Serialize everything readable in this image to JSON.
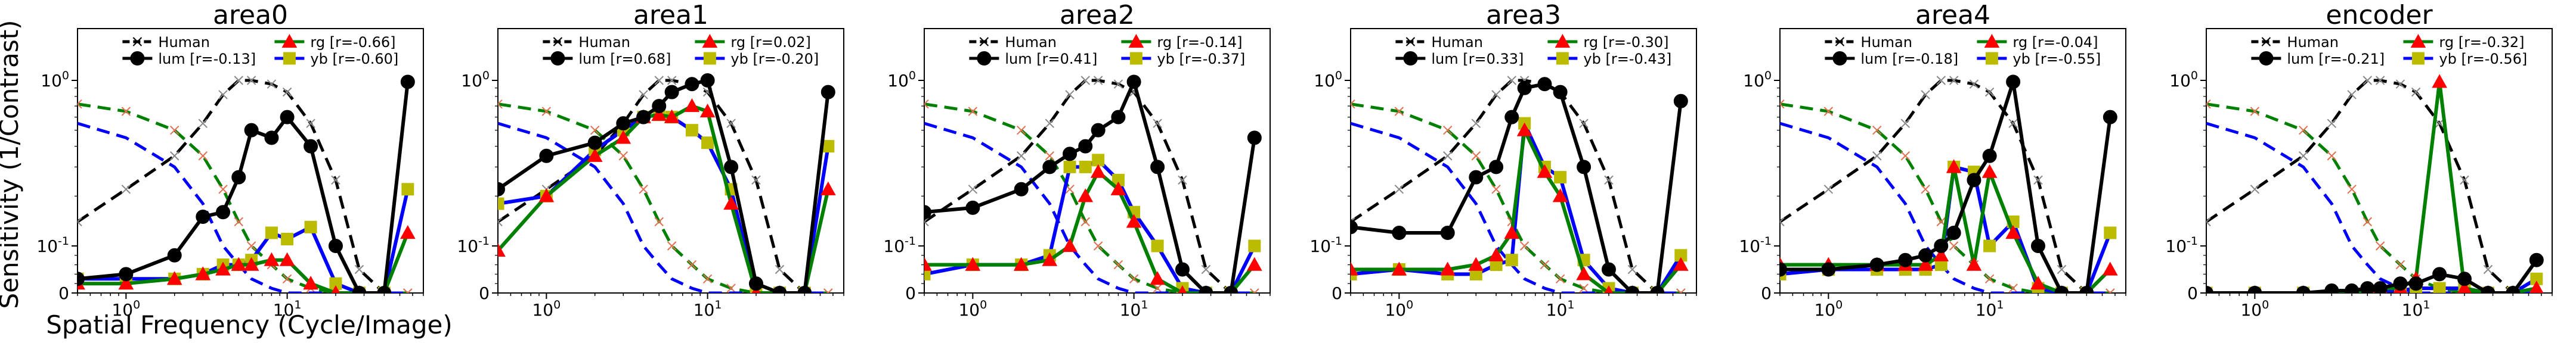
{
  "figure": {
    "ylabel": "Sensitivity (1/Contrast)",
    "xlabel": "Spatial Frequency (Cycle/Image)"
  },
  "colors": {
    "human": "#000000",
    "human_marker": "#888888",
    "lum": "#000000",
    "rg": "#008000",
    "rg_marker": "#ff0000",
    "yb": "#0000ff",
    "yb_marker": "#bbbb00",
    "human_rg_dash": "#008000",
    "human_yb_dash": "#0000ff",
    "human_cross": "#e07050"
  },
  "legend_labels": {
    "human": "Human",
    "lum": "lum",
    "rg": "rg",
    "yb": "yb"
  },
  "chart_data": [
    {
      "type": "line",
      "title": "area0",
      "xscale": "log",
      "yscale": "symlog",
      "xlim": [
        0.5,
        70
      ],
      "yticks": [
        "0",
        "10^-1",
        "10^0"
      ],
      "legend": {
        "lum_r": "[r=-0.13]",
        "rg_r": "[r=-0.66]",
        "yb_r": "[r=-0.60]"
      },
      "x": [
        0.5,
        1,
        2,
        3,
        4,
        5,
        6,
        8,
        10,
        14,
        20,
        28,
        40,
        56
      ],
      "human_lum": [
        0.14,
        0.22,
        0.35,
        0.55,
        0.82,
        1.0,
        1.0,
        0.95,
        0.85,
        0.55,
        0.25,
        0.05,
        0.0,
        0.0
      ],
      "human_rg": [
        0.72,
        0.65,
        0.5,
        0.35,
        0.22,
        0.14,
        0.1,
        0.06,
        0.03,
        0.01,
        0.0,
        0.0,
        0.0,
        0.0
      ],
      "human_yb": [
        0.55,
        0.45,
        0.3,
        0.18,
        0.1,
        0.06,
        0.03,
        0.01,
        0.0,
        0.0,
        0.0,
        0.0,
        0.0,
        0.0
      ],
      "series": [
        {
          "name": "lum",
          "values": [
            0.03,
            0.04,
            0.08,
            0.15,
            0.16,
            0.26,
            0.5,
            0.45,
            0.6,
            0.4,
            0.1,
            0.0,
            0.0,
            0.98
          ]
        },
        {
          "name": "rg",
          "values": [
            0.02,
            0.02,
            0.03,
            0.04,
            0.05,
            0.06,
            0.06,
            0.07,
            0.07,
            0.02,
            0.0,
            0.0,
            0.0,
            0.12
          ]
        },
        {
          "name": "yb",
          "values": [
            0.03,
            0.03,
            0.03,
            0.04,
            0.06,
            0.06,
            0.07,
            0.12,
            0.11,
            0.13,
            0.02,
            0.0,
            0.0,
            0.22
          ]
        }
      ]
    },
    {
      "type": "line",
      "title": "area1",
      "xscale": "log",
      "yscale": "symlog",
      "xlim": [
        0.5,
        70
      ],
      "yticks": [
        "0",
        "10^-1",
        "10^0"
      ],
      "legend": {
        "lum_r": "[r=0.68]",
        "rg_r": "[r=0.02]",
        "yb_r": "[r=-0.20]"
      },
      "x": [
        0.5,
        1,
        2,
        3,
        4,
        5,
        6,
        8,
        10,
        14,
        20,
        28,
        40,
        56
      ],
      "human_lum": [
        0.14,
        0.22,
        0.35,
        0.55,
        0.82,
        1.0,
        1.0,
        0.95,
        0.85,
        0.55,
        0.25,
        0.05,
        0.0,
        0.0
      ],
      "human_rg": [
        0.72,
        0.65,
        0.5,
        0.35,
        0.22,
        0.14,
        0.1,
        0.06,
        0.03,
        0.01,
        0.0,
        0.0,
        0.0,
        0.0
      ],
      "human_yb": [
        0.55,
        0.45,
        0.3,
        0.18,
        0.1,
        0.06,
        0.03,
        0.01,
        0.0,
        0.0,
        0.0,
        0.0,
        0.0,
        0.0
      ],
      "series": [
        {
          "name": "lum",
          "values": [
            0.22,
            0.35,
            0.42,
            0.55,
            0.6,
            0.7,
            0.85,
            0.95,
            1.0,
            0.3,
            0.02,
            0.0,
            0.0,
            0.85
          ]
        },
        {
          "name": "rg",
          "values": [
            0.09,
            0.2,
            0.35,
            0.45,
            0.6,
            0.62,
            0.6,
            0.7,
            0.65,
            0.18,
            0.0,
            0.0,
            0.0,
            0.22
          ]
        },
        {
          "name": "yb",
          "values": [
            0.18,
            0.2,
            0.38,
            0.5,
            0.6,
            0.62,
            0.6,
            0.5,
            0.42,
            0.22,
            0.0,
            0.0,
            0.0,
            0.4
          ]
        }
      ]
    },
    {
      "type": "line",
      "title": "area2",
      "xscale": "log",
      "yscale": "symlog",
      "xlim": [
        0.5,
        70
      ],
      "yticks": [
        "0",
        "10^-1",
        "10^0"
      ],
      "legend": {
        "lum_r": "[r=0.41]",
        "rg_r": "[r=-0.14]",
        "yb_r": "[r=-0.37]"
      },
      "x": [
        0.5,
        1,
        2,
        3,
        4,
        5,
        6,
        8,
        10,
        14,
        20,
        28,
        40,
        56
      ],
      "human_lum": [
        0.14,
        0.22,
        0.35,
        0.55,
        0.82,
        1.0,
        1.0,
        0.95,
        0.85,
        0.55,
        0.25,
        0.05,
        0.0,
        0.0
      ],
      "human_rg": [
        0.72,
        0.65,
        0.5,
        0.35,
        0.22,
        0.14,
        0.1,
        0.06,
        0.03,
        0.01,
        0.0,
        0.0,
        0.0,
        0.0
      ],
      "human_yb": [
        0.55,
        0.45,
        0.3,
        0.18,
        0.1,
        0.06,
        0.03,
        0.01,
        0.0,
        0.0,
        0.0,
        0.0,
        0.0,
        0.0
      ],
      "series": [
        {
          "name": "lum",
          "values": [
            0.16,
            0.17,
            0.22,
            0.3,
            0.36,
            0.4,
            0.5,
            0.6,
            0.98,
            0.3,
            0.05,
            0.0,
            0.0,
            0.45
          ]
        },
        {
          "name": "rg",
          "values": [
            0.06,
            0.06,
            0.06,
            0.07,
            0.1,
            0.2,
            0.28,
            0.22,
            0.14,
            0.03,
            0.0,
            0.0,
            0.0,
            0.06
          ]
        },
        {
          "name": "yb",
          "values": [
            0.04,
            0.06,
            0.06,
            0.08,
            0.3,
            0.3,
            0.33,
            0.25,
            0.16,
            0.1,
            0.01,
            0.0,
            0.0,
            0.1
          ]
        }
      ]
    },
    {
      "type": "line",
      "title": "area3",
      "xscale": "log",
      "yscale": "symlog",
      "xlim": [
        0.5,
        70
      ],
      "yticks": [
        "0",
        "10^-1",
        "10^0"
      ],
      "legend": {
        "lum_r": "[r=0.33]",
        "rg_r": "[r=-0.30]",
        "yb_r": "[r=-0.43]"
      },
      "x": [
        0.5,
        1,
        2,
        3,
        4,
        5,
        6,
        8,
        10,
        14,
        20,
        28,
        40,
        56
      ],
      "human_lum": [
        0.14,
        0.22,
        0.35,
        0.55,
        0.82,
        1.0,
        1.0,
        0.95,
        0.85,
        0.55,
        0.25,
        0.05,
        0.0,
        0.0
      ],
      "human_rg": [
        0.72,
        0.65,
        0.5,
        0.35,
        0.22,
        0.14,
        0.1,
        0.06,
        0.03,
        0.01,
        0.0,
        0.0,
        0.0,
        0.0
      ],
      "human_yb": [
        0.55,
        0.45,
        0.3,
        0.18,
        0.1,
        0.06,
        0.03,
        0.01,
        0.0,
        0.0,
        0.0,
        0.0,
        0.0,
        0.0
      ],
      "series": [
        {
          "name": "lum",
          "values": [
            0.13,
            0.12,
            0.12,
            0.26,
            0.3,
            0.6,
            0.9,
            0.95,
            0.85,
            0.3,
            0.05,
            0.0,
            0.0,
            0.75
          ]
        },
        {
          "name": "rg",
          "values": [
            0.05,
            0.05,
            0.05,
            0.06,
            0.08,
            0.12,
            0.5,
            0.28,
            0.2,
            0.04,
            0.0,
            0.0,
            0.0,
            0.06
          ]
        },
        {
          "name": "yb",
          "values": [
            0.04,
            0.05,
            0.04,
            0.04,
            0.06,
            0.07,
            0.55,
            0.3,
            0.26,
            0.07,
            0.01,
            0.0,
            0.0,
            0.08
          ]
        }
      ]
    },
    {
      "type": "line",
      "title": "area4",
      "xscale": "log",
      "yscale": "symlog",
      "xlim": [
        0.5,
        70
      ],
      "yticks": [
        "0",
        "10^-1",
        "10^0"
      ],
      "legend": {
        "lum_r": "[r=-0.18]",
        "rg_r": "[r=-0.04]",
        "yb_r": "[r=-0.55]"
      },
      "x": [
        0.5,
        1,
        2,
        3,
        4,
        5,
        6,
        8,
        10,
        14,
        20,
        28,
        40,
        56
      ],
      "human_lum": [
        0.14,
        0.22,
        0.35,
        0.55,
        0.82,
        1.0,
        1.0,
        0.95,
        0.85,
        0.55,
        0.25,
        0.05,
        0.0,
        0.0
      ],
      "human_rg": [
        0.72,
        0.65,
        0.5,
        0.35,
        0.22,
        0.14,
        0.1,
        0.06,
        0.03,
        0.01,
        0.0,
        0.0,
        0.0,
        0.0
      ],
      "human_yb": [
        0.55,
        0.45,
        0.3,
        0.18,
        0.1,
        0.06,
        0.03,
        0.01,
        0.0,
        0.0,
        0.0,
        0.0,
        0.0,
        0.0
      ],
      "series": [
        {
          "name": "lum",
          "values": [
            0.05,
            0.05,
            0.06,
            0.07,
            0.08,
            0.1,
            0.12,
            0.25,
            0.35,
            0.98,
            0.1,
            0.0,
            0.0,
            0.6
          ]
        },
        {
          "name": "rg",
          "values": [
            0.06,
            0.06,
            0.06,
            0.06,
            0.06,
            0.08,
            0.3,
            0.06,
            0.28,
            0.12,
            0.02,
            0.0,
            0.0,
            0.05
          ]
        },
        {
          "name": "yb",
          "values": [
            0.04,
            0.05,
            0.05,
            0.05,
            0.05,
            0.06,
            0.3,
            0.28,
            0.1,
            0.14,
            0.01,
            0.0,
            0.0,
            0.12
          ]
        }
      ]
    },
    {
      "type": "line",
      "title": "encoder",
      "xscale": "log",
      "yscale": "symlog",
      "xlim": [
        0.5,
        70
      ],
      "yticks": [
        "0",
        "10^-1",
        "10^0"
      ],
      "legend": {
        "lum_r": "[r=-0.21]",
        "rg_r": "[r=-0.32]",
        "yb_r": "[r=-0.56]"
      },
      "x": [
        0.5,
        1,
        2,
        3,
        4,
        5,
        6,
        8,
        10,
        14,
        20,
        28,
        40,
        56
      ],
      "human_lum": [
        0.14,
        0.22,
        0.35,
        0.55,
        0.82,
        1.0,
        1.0,
        0.95,
        0.85,
        0.55,
        0.25,
        0.05,
        0.0,
        0.0
      ],
      "human_rg": [
        0.72,
        0.65,
        0.5,
        0.35,
        0.22,
        0.14,
        0.1,
        0.06,
        0.03,
        0.01,
        0.0,
        0.0,
        0.0,
        0.0
      ],
      "human_yb": [
        0.55,
        0.45,
        0.3,
        0.18,
        0.1,
        0.06,
        0.03,
        0.01,
        0.0,
        0.0,
        0.0,
        0.0,
        0.0,
        0.0
      ],
      "series": [
        {
          "name": "lum",
          "values": [
            0.0,
            0.0,
            0.0,
            0.005,
            0.005,
            0.01,
            0.01,
            0.02,
            0.02,
            0.04,
            0.03,
            0.0,
            0.0,
            0.07
          ]
        },
        {
          "name": "rg",
          "values": [
            0.0,
            0.0,
            0.0,
            0.0,
            0.0,
            0.005,
            0.01,
            0.01,
            0.03,
            0.98,
            0.01,
            0.0,
            0.0,
            0.01
          ]
        },
        {
          "name": "yb",
          "values": [
            0.0,
            0.0,
            0.0,
            0.0,
            0.0,
            0.005,
            0.005,
            0.005,
            0.01,
            0.01,
            0.01,
            0.0,
            0.0,
            0.03
          ]
        }
      ]
    }
  ]
}
